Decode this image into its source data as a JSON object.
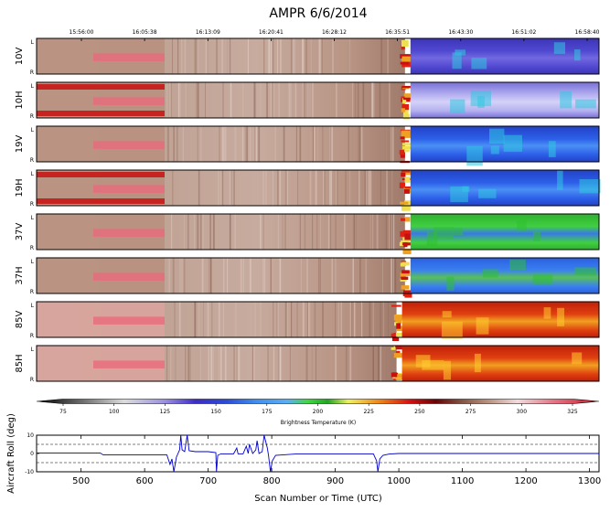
{
  "chart_data": [
    {
      "type": "heatmap",
      "title": "AMPR 6/6/2014",
      "time_ticks": [
        "15:56:00",
        "16:05:38",
        "16:13:09",
        "16:20:41",
        "16:28:12",
        "16:35:51",
        "16:43:30",
        "16:51:02",
        "16:58:40"
      ],
      "channels": [
        {
          "label": "10V",
          "ocean_scheme": "purple"
        },
        {
          "label": "10H",
          "ocean_scheme": "lavender"
        },
        {
          "label": "19V",
          "ocean_scheme": "blue"
        },
        {
          "label": "19H",
          "ocean_scheme": "blue"
        },
        {
          "label": "37V",
          "ocean_scheme": "green"
        },
        {
          "label": "37H",
          "ocean_scheme": "bluegreen"
        },
        {
          "label": "85V",
          "ocean_scheme": "red"
        },
        {
          "label": "85H",
          "ocean_scheme": "red"
        }
      ],
      "scan_left_label": "L",
      "scan_right_label": "R",
      "colorbar": {
        "label": "Brightness Temperature (K)",
        "range": [
          62,
          338
        ],
        "ticks": [
          75,
          100,
          125,
          150,
          175,
          200,
          225,
          250,
          275,
          300,
          325
        ],
        "stops": [
          {
            "v": 62,
            "c": "#000000"
          },
          {
            "v": 85,
            "c": "#707070"
          },
          {
            "v": 105,
            "c": "#dcdcdc"
          },
          {
            "v": 125,
            "c": "#9a90e0"
          },
          {
            "v": 140,
            "c": "#3c2cc8"
          },
          {
            "v": 155,
            "c": "#2a4cd8"
          },
          {
            "v": 170,
            "c": "#3f8ff0"
          },
          {
            "v": 185,
            "c": "#58b0f8"
          },
          {
            "v": 195,
            "c": "#40d840"
          },
          {
            "v": 205,
            "c": "#20a820"
          },
          {
            "v": 215,
            "c": "#f0f060"
          },
          {
            "v": 230,
            "c": "#f08818"
          },
          {
            "v": 245,
            "c": "#d81010"
          },
          {
            "v": 258,
            "c": "#6a0404"
          },
          {
            "v": 270,
            "c": "#805040"
          },
          {
            "v": 285,
            "c": "#c09888"
          },
          {
            "v": 298,
            "c": "#f0dcdc"
          },
          {
            "v": 315,
            "c": "#e87888"
          },
          {
            "v": 338,
            "c": "#c81828"
          }
        ]
      }
    },
    {
      "type": "line",
      "xlabel": "Scan Number or Time (UTC)",
      "ylabel": "Aircraft Roll (deg)",
      "xlim": [
        430,
        1315
      ],
      "ylim": [
        -10,
        10
      ],
      "xticks": [
        500,
        600,
        700,
        800,
        900,
        1000,
        1100,
        1200,
        1300
      ],
      "yticks": [
        10,
        0,
        -10
      ],
      "reference_lines": [
        5,
        -5
      ],
      "series": [
        {
          "name": "roll",
          "color": "#0000cc",
          "x": [
            430,
            530,
            535,
            635,
            640,
            643,
            646,
            650,
            655,
            657,
            659,
            663,
            667,
            670,
            680,
            700,
            712,
            713,
            715,
            720,
            740,
            745,
            747,
            755,
            760,
            763,
            765,
            770,
            775,
            777,
            780,
            785,
            788,
            793,
            795,
            798,
            801,
            806,
            840,
            960,
            965,
            967,
            970,
            975,
            985,
            1000,
            1100,
            1200,
            1315
          ],
          "y": [
            0.3,
            0.3,
            -0.8,
            -0.8,
            -6,
            -3,
            -10,
            -2,
            2,
            10,
            2,
            1,
            10,
            1.5,
            1,
            1,
            0.5,
            -10,
            -1,
            -0.2,
            -0.2,
            3,
            -0.2,
            -0.2,
            4,
            0,
            5,
            0,
            2,
            7,
            0,
            1,
            10,
            3,
            -1,
            -10,
            -4,
            -1,
            -0.2,
            -0.2,
            -4,
            -10,
            -3,
            -1,
            -0.3,
            0,
            0,
            0,
            0
          ]
        }
      ]
    }
  ]
}
